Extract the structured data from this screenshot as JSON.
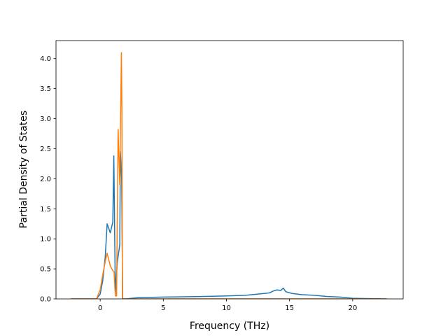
{
  "chart_data": {
    "type": "line",
    "title": "",
    "xlabel": "Frequency (THz)",
    "ylabel": "Partial Density of States",
    "xlim": [
      -3.5,
      24
    ],
    "ylim": [
      0,
      4.3
    ],
    "xticks": [
      0,
      5,
      10,
      15,
      20
    ],
    "yticks": [
      0.0,
      0.5,
      1.0,
      1.5,
      2.0,
      2.5,
      3.0,
      3.5,
      4.0
    ],
    "xtick_labels": [
      "0",
      "5",
      "10",
      "15",
      "20"
    ],
    "ytick_labels": [
      "0.0",
      "0.5",
      "1.0",
      "1.5",
      "2.0",
      "2.5",
      "3.0",
      "3.5",
      "4.0"
    ],
    "grid": false,
    "legend": "none",
    "series": [
      {
        "color": "#1f77b4",
        "points": [
          [
            -2.3,
            0.0
          ],
          [
            -0.3,
            0.0
          ],
          [
            0.0,
            0.08
          ],
          [
            0.2,
            0.3
          ],
          [
            0.4,
            0.7
          ],
          [
            0.55,
            1.25
          ],
          [
            0.8,
            1.1
          ],
          [
            1.0,
            1.28
          ],
          [
            1.08,
            2.38
          ],
          [
            1.2,
            0.08
          ],
          [
            1.35,
            0.6
          ],
          [
            1.55,
            0.9
          ],
          [
            1.6,
            2.45
          ],
          [
            1.7,
            2.0
          ],
          [
            1.78,
            0.0
          ],
          [
            2.0,
            0.0
          ],
          [
            3.0,
            0.02
          ],
          [
            5.0,
            0.03
          ],
          [
            8.0,
            0.04
          ],
          [
            10.0,
            0.05
          ],
          [
            11.5,
            0.06
          ],
          [
            12.5,
            0.08
          ],
          [
            13.4,
            0.1
          ],
          [
            13.7,
            0.13
          ],
          [
            14.0,
            0.15
          ],
          [
            14.3,
            0.14
          ],
          [
            14.5,
            0.18
          ],
          [
            14.7,
            0.12
          ],
          [
            15.2,
            0.09
          ],
          [
            16.0,
            0.07
          ],
          [
            17.0,
            0.06
          ],
          [
            18.0,
            0.04
          ],
          [
            19.0,
            0.03
          ],
          [
            20.0,
            0.01
          ],
          [
            22.7,
            0.0
          ]
        ]
      },
      {
        "color": "#ff7f0e",
        "points": [
          [
            -2.3,
            0.0
          ],
          [
            -0.3,
            0.0
          ],
          [
            0.0,
            0.15
          ],
          [
            0.2,
            0.4
          ],
          [
            0.4,
            0.62
          ],
          [
            0.55,
            0.76
          ],
          [
            0.8,
            0.55
          ],
          [
            1.0,
            0.47
          ],
          [
            1.1,
            0.45
          ],
          [
            1.2,
            0.05
          ],
          [
            1.3,
            0.05
          ],
          [
            1.42,
            2.82
          ],
          [
            1.55,
            1.9
          ],
          [
            1.68,
            4.1
          ],
          [
            1.72,
            3.2
          ],
          [
            1.76,
            0.0
          ],
          [
            3.0,
            0.0
          ],
          [
            10.0,
            0.0
          ],
          [
            20.0,
            0.0
          ],
          [
            22.7,
            0.0
          ]
        ]
      }
    ]
  }
}
